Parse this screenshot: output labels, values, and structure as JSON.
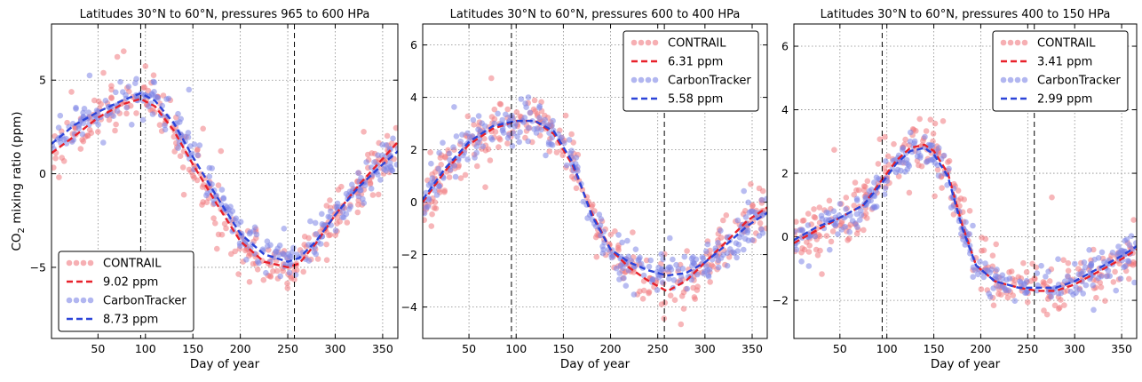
{
  "chart_data": [
    {
      "type": "scatter",
      "title": "Latitudes 30°N to 60°N, pressures 965 to 600 HPa",
      "xlabel": "Day of year",
      "ylabel": "CO₂ mixing ratio (ppm)",
      "xlim": [
        1,
        366
      ],
      "ylim": [
        -8.8,
        8.0
      ],
      "xticks": [
        50,
        100,
        150,
        200,
        250,
        300,
        350
      ],
      "yticks": [
        -5,
        0,
        5
      ],
      "grid": true,
      "vlines": [
        95,
        257
      ],
      "legend_position": "lower-left",
      "series": [
        {
          "name": "CONTRAIL",
          "kind": "points",
          "color": "#f07a80",
          "spread": 1.2
        },
        {
          "name": "9.02 ppm",
          "kind": "fit",
          "color": "#e8212a",
          "x": [
            1,
            25,
            50,
            75,
            95,
            110,
            130,
            150,
            175,
            200,
            225,
            250,
            262,
            280,
            300,
            325,
            350,
            366
          ],
          "y": [
            1.1,
            2.0,
            3.0,
            3.7,
            4.0,
            3.6,
            2.3,
            0.5,
            -1.6,
            -3.6,
            -4.7,
            -5.0,
            -4.8,
            -3.7,
            -2.2,
            -0.6,
            0.8,
            1.7
          ]
        },
        {
          "name": "CarbonTracker",
          "kind": "points",
          "color": "#7d85e6",
          "spread": 0.9
        },
        {
          "name": "8.73 ppm",
          "kind": "fit",
          "color": "#2c44d8",
          "x": [
            1,
            25,
            50,
            75,
            95,
            110,
            130,
            150,
            175,
            200,
            225,
            250,
            262,
            280,
            300,
            325,
            350,
            366
          ],
          "y": [
            1.6,
            2.6,
            3.3,
            3.9,
            4.3,
            3.9,
            2.7,
            0.9,
            -1.2,
            -3.2,
            -4.3,
            -4.7,
            -4.5,
            -3.6,
            -2.2,
            -0.7,
            0.5,
            1.2
          ]
        }
      ],
      "legend_labels": [
        "CONTRAIL",
        "9.02 ppm",
        "CarbonTracker",
        "8.73 ppm"
      ]
    },
    {
      "type": "scatter",
      "title": "Latitudes 30°N to 60°N, pressures 600 to 400 HPa",
      "xlabel": "Day of year",
      "ylabel": "",
      "xlim": [
        1,
        366
      ],
      "ylim": [
        -5.2,
        6.8
      ],
      "xticks": [
        50,
        100,
        150,
        200,
        250,
        300,
        350
      ],
      "yticks": [
        -4,
        -2,
        0,
        2,
        4,
        6
      ],
      "grid": true,
      "vlines": [
        95,
        257
      ],
      "legend_position": "top-right",
      "series": [
        {
          "name": "CONTRAIL",
          "kind": "points",
          "color": "#f07a80",
          "spread": 0.9
        },
        {
          "name": "6.31 ppm",
          "kind": "fit",
          "color": "#e8212a",
          "x": [
            1,
            25,
            50,
            75,
            100,
            120,
            140,
            160,
            180,
            200,
            220,
            240,
            260,
            280,
            300,
            320,
            345,
            366
          ],
          "y": [
            0.0,
            1.2,
            2.2,
            2.8,
            3.1,
            3.1,
            2.6,
            1.4,
            -0.4,
            -1.8,
            -2.5,
            -3.0,
            -3.4,
            -3.0,
            -2.3,
            -1.6,
            -0.7,
            -0.2
          ]
        },
        {
          "name": "CarbonTracker",
          "kind": "points",
          "color": "#7d85e6",
          "spread": 0.7
        },
        {
          "name": "5.58 ppm",
          "kind": "fit",
          "color": "#2c44d8",
          "x": [
            1,
            25,
            50,
            75,
            100,
            120,
            140,
            160,
            180,
            200,
            220,
            240,
            260,
            280,
            300,
            320,
            345,
            366
          ],
          "y": [
            0.1,
            1.3,
            2.3,
            2.9,
            3.1,
            3.1,
            2.7,
            1.5,
            -0.5,
            -1.8,
            -2.3,
            -2.6,
            -2.8,
            -2.7,
            -2.3,
            -1.7,
            -0.9,
            -0.4
          ]
        }
      ],
      "legend_labels": [
        "CONTRAIL",
        "6.31 ppm",
        "CarbonTracker",
        "5.58 ppm"
      ]
    },
    {
      "type": "scatter",
      "title": "Latitudes 30°N to 60°N, pressures 400 to 150 HPa",
      "xlabel": "Day of year",
      "ylabel": "",
      "xlim": [
        1,
        366
      ],
      "ylim": [
        -3.2,
        6.7
      ],
      "xticks": [
        50,
        100,
        150,
        200,
        250,
        300,
        350
      ],
      "yticks": [
        -2,
        0,
        2,
        4,
        6
      ],
      "grid": true,
      "vlines": [
        95,
        257
      ],
      "legend_position": "top-right",
      "series": [
        {
          "name": "CONTRAIL",
          "kind": "points",
          "color": "#f07a80",
          "spread": 0.8
        },
        {
          "name": "3.41 ppm",
          "kind": "fit",
          "color": "#e8212a",
          "x": [
            1,
            25,
            50,
            75,
            95,
            110,
            125,
            140,
            150,
            165,
            180,
            195,
            215,
            240,
            260,
            280,
            300,
            325,
            350,
            366
          ],
          "y": [
            -0.2,
            0.2,
            0.6,
            1.0,
            1.8,
            2.4,
            2.8,
            2.9,
            2.7,
            2.0,
            0.4,
            -0.9,
            -1.4,
            -1.6,
            -1.7,
            -1.7,
            -1.5,
            -1.1,
            -0.7,
            -0.4
          ]
        },
        {
          "name": "CarbonTracker",
          "kind": "points",
          "color": "#7d85e6",
          "spread": 0.5
        },
        {
          "name": "2.99 ppm",
          "kind": "fit",
          "color": "#2c44d8",
          "x": [
            1,
            25,
            50,
            75,
            95,
            110,
            125,
            140,
            150,
            165,
            180,
            195,
            215,
            240,
            260,
            280,
            300,
            325,
            350,
            366
          ],
          "y": [
            -0.1,
            0.3,
            0.6,
            1.0,
            1.7,
            2.3,
            2.7,
            2.8,
            2.6,
            1.9,
            0.3,
            -0.9,
            -1.4,
            -1.6,
            -1.6,
            -1.6,
            -1.4,
            -1.0,
            -0.6,
            -0.3
          ]
        }
      ],
      "legend_labels": [
        "CONTRAIL",
        "3.41 ppm",
        "CarbonTracker",
        "2.99 ppm"
      ]
    }
  ]
}
